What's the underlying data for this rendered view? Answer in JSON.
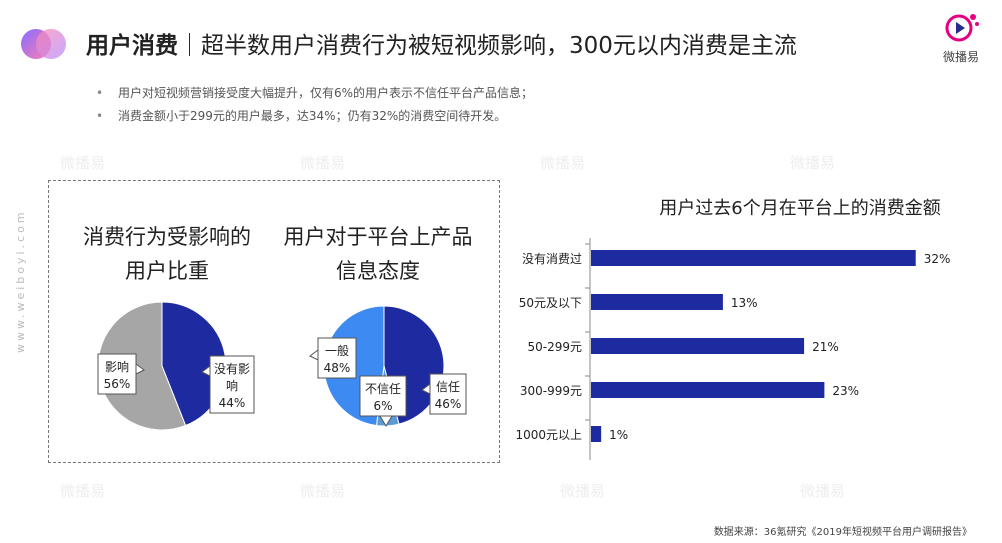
{
  "header": {
    "title_strong": "用户消费",
    "title_rest": "｜超半数用户消费行为被短视频影响，300元以内消费是主流",
    "brand_text": "微播易"
  },
  "bullets": [
    "用户对短视频营销接受度大幅提升，仅有6%的用户表示不信任平台产品信息；",
    "消费金额小于299元的用户最多，达34%；仍有32%的消费空间待开发。"
  ],
  "side_url": "www.weiboyi.com",
  "watermark_text": "微播易",
  "pie1": {
    "title_line1": "消费行为受影响的",
    "title_line2": "用户比重"
  },
  "pie2": {
    "title_line1": "用户对于平台上产品",
    "title_line2": "信息态度"
  },
  "bar": {
    "title": "用户过去6个月在平台上的消费金额"
  },
  "footer": {
    "source": "数据来源：36氪研究《2019年短视频平台用户调研报告》"
  },
  "chart_data": [
    {
      "type": "pie",
      "slices": [
        {
          "label_lines": [
            "影响"
          ],
          "value": 56,
          "value_label": "56%",
          "color": "#A6A6A6"
        },
        {
          "label_lines": [
            "没有影",
            "响"
          ],
          "value": 44,
          "value_label": "44%",
          "color": "#1E2AA0"
        }
      ]
    },
    {
      "type": "pie",
      "slices": [
        {
          "label_lines": [
            "信任"
          ],
          "value": 46,
          "value_label": "46%",
          "color": "#1E2AA0"
        },
        {
          "label_lines": [
            "不信任"
          ],
          "value": 6,
          "value_label": "6%",
          "color": "#5B9BD5"
        },
        {
          "label_lines": [
            "一般"
          ],
          "value": 48,
          "value_label": "48%",
          "color": "#3D8BF2"
        }
      ]
    },
    {
      "type": "bar",
      "orientation": "horizontal",
      "categories": [
        "没有消费过",
        "50元及以下",
        "50-299元",
        "300-999元",
        "1000元以上"
      ],
      "values": [
        32,
        13,
        21,
        23,
        1
      ],
      "value_labels": [
        "32%",
        "13%",
        "21%",
        "23%",
        "1%"
      ],
      "xlim": [
        0,
        34
      ],
      "color": "#1E2AA0"
    }
  ]
}
